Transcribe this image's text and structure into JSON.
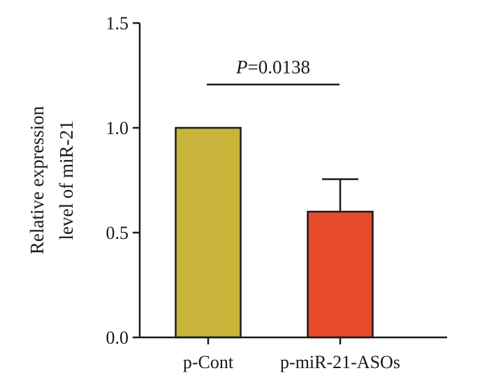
{
  "chart_data": {
    "type": "bar",
    "title": "",
    "xlabel": "",
    "ylabel_lines": [
      "Relative expression",
      "level of miR-21"
    ],
    "ylim": [
      0,
      1.5
    ],
    "yticks": [
      "0.0",
      "0.5",
      "1.0",
      "1.5"
    ],
    "ytick_values": [
      0,
      0.5,
      1.0,
      1.5
    ],
    "categories": [
      "p-Cont",
      "p-miR-21-ASOs"
    ],
    "values": [
      1.0,
      0.6
    ],
    "error_upper": [
      0,
      0.155
    ],
    "colors": [
      "#c8b43a",
      "#e84a2c"
    ],
    "annotation": {
      "prefix": "P",
      "value": "=0.0138"
    },
    "grid": false,
    "legend": "none"
  }
}
